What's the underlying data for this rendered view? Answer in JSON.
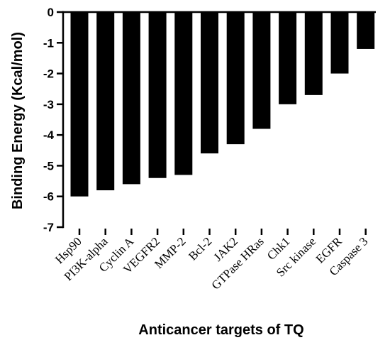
{
  "chart_data": {
    "type": "bar",
    "title": "",
    "xlabel": "Anticancer targets of TQ",
    "ylabel": "Binding Energy (Kcal/mol)",
    "ylim": [
      -7,
      0
    ],
    "yticks": [
      0,
      -1,
      -2,
      -3,
      -4,
      -5,
      -6,
      -7
    ],
    "grid": false,
    "legend": "none",
    "bar_color": "#000000",
    "categories": [
      "Hsp90",
      "PI3K-alpha",
      "Cyclin A",
      "VEGFR2",
      "MMP-2",
      "Bcl-2",
      "JAK2",
      "GTPase HRas",
      "Chk1",
      "Src kinase",
      "EGFR",
      "Caspase 3"
    ],
    "values": [
      -6.0,
      -5.8,
      -5.6,
      -5.4,
      -5.3,
      -4.6,
      -4.3,
      -3.8,
      -3.0,
      -2.7,
      -2.0,
      -1.2
    ]
  }
}
